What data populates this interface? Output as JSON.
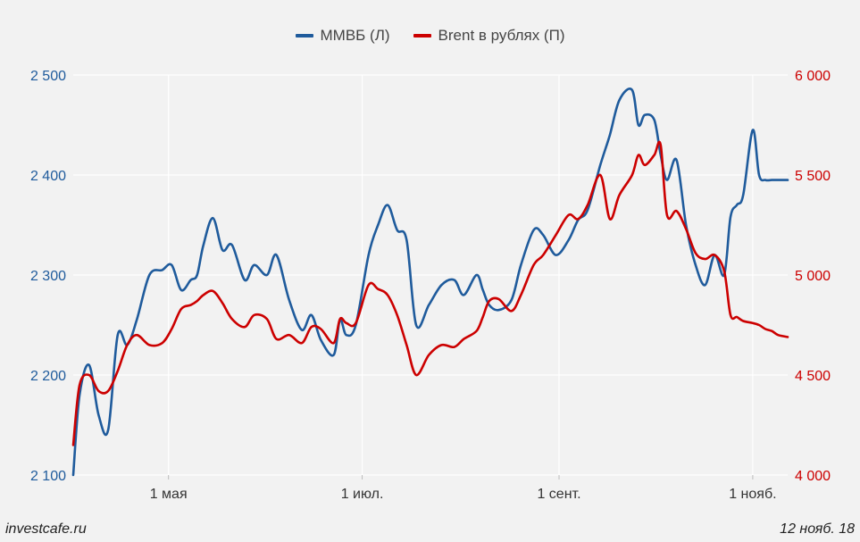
{
  "chart_data": {
    "type": "line",
    "legend_position": "top-center",
    "grid": true,
    "x_ticks": [
      "1 мая",
      "1 июл.",
      "1 сент.",
      "1 нояб."
    ],
    "x_range": [
      "2018-04-01",
      "2018-11-12"
    ],
    "left_axis": {
      "range": [
        2100,
        2500
      ],
      "ticks": [
        "2 100",
        "2 200",
        "2 300",
        "2 400",
        "2 500"
      ],
      "color": "#1f5b9c"
    },
    "right_axis": {
      "range": [
        4000,
        6000
      ],
      "ticks": [
        "4 000",
        "4 500",
        "5 000",
        "5 500",
        "6 000"
      ],
      "color": "#cc0000"
    },
    "series": [
      {
        "name": "ММВБ (Л)",
        "axis": "left",
        "color": "#1f5b9c",
        "x": [
          "2018-04-01",
          "2018-04-03",
          "2018-04-06",
          "2018-04-09",
          "2018-04-12",
          "2018-04-15",
          "2018-04-18",
          "2018-04-21",
          "2018-04-25",
          "2018-04-29",
          "2018-05-02",
          "2018-05-05",
          "2018-05-08",
          "2018-05-10",
          "2018-05-12",
          "2018-05-15",
          "2018-05-18",
          "2018-05-21",
          "2018-05-25",
          "2018-05-28",
          "2018-06-01",
          "2018-06-04",
          "2018-06-08",
          "2018-06-12",
          "2018-06-15",
          "2018-06-18",
          "2018-06-22",
          "2018-06-24",
          "2018-06-26",
          "2018-06-29",
          "2018-07-03",
          "2018-07-06",
          "2018-07-09",
          "2018-07-12",
          "2018-07-15",
          "2018-07-18",
          "2018-07-22",
          "2018-07-26",
          "2018-07-30",
          "2018-08-02",
          "2018-08-06",
          "2018-08-08",
          "2018-08-10",
          "2018-08-13",
          "2018-08-17",
          "2018-08-20",
          "2018-08-24",
          "2018-08-27",
          "2018-08-31",
          "2018-09-04",
          "2018-09-07",
          "2018-09-10",
          "2018-09-14",
          "2018-09-17",
          "2018-09-20",
          "2018-09-24",
          "2018-09-26",
          "2018-09-28",
          "2018-10-01",
          "2018-10-03",
          "2018-10-05",
          "2018-10-08",
          "2018-10-11",
          "2018-10-14",
          "2018-10-17",
          "2018-10-20",
          "2018-10-23",
          "2018-10-25",
          "2018-10-27",
          "2018-10-29",
          "2018-11-01",
          "2018-11-03",
          "2018-11-05",
          "2018-11-07",
          "2018-11-09",
          "2018-11-12"
        ],
        "values": [
          2100,
          2180,
          2210,
          2160,
          2145,
          2240,
          2230,
          2255,
          2300,
          2305,
          2310,
          2285,
          2295,
          2300,
          2330,
          2357,
          2325,
          2330,
          2295,
          2310,
          2300,
          2320,
          2275,
          2245,
          2260,
          2235,
          2220,
          2255,
          2240,
          2250,
          2320,
          2350,
          2370,
          2345,
          2335,
          2250,
          2270,
          2290,
          2295,
          2280,
          2300,
          2285,
          2270,
          2265,
          2275,
          2310,
          2345,
          2340,
          2320,
          2335,
          2355,
          2365,
          2410,
          2440,
          2475,
          2485,
          2450,
          2460,
          2455,
          2420,
          2395,
          2415,
          2350,
          2310,
          2290,
          2320,
          2300,
          2358,
          2370,
          2380,
          2445,
          2400,
          2395,
          2395,
          2395,
          2395
        ]
      },
      {
        "name": "Brent в рублях (П)",
        "axis": "right",
        "color": "#cc0000",
        "x": [
          "2018-04-01",
          "2018-04-03",
          "2018-04-06",
          "2018-04-09",
          "2018-04-12",
          "2018-04-15",
          "2018-04-18",
          "2018-04-21",
          "2018-04-25",
          "2018-04-29",
          "2018-05-02",
          "2018-05-05",
          "2018-05-08",
          "2018-05-10",
          "2018-05-12",
          "2018-05-15",
          "2018-05-18",
          "2018-05-21",
          "2018-05-25",
          "2018-05-28",
          "2018-06-01",
          "2018-06-04",
          "2018-06-08",
          "2018-06-12",
          "2018-06-15",
          "2018-06-18",
          "2018-06-22",
          "2018-06-24",
          "2018-06-26",
          "2018-06-29",
          "2018-07-03",
          "2018-07-06",
          "2018-07-09",
          "2018-07-12",
          "2018-07-15",
          "2018-07-18",
          "2018-07-22",
          "2018-07-26",
          "2018-07-30",
          "2018-08-02",
          "2018-08-06",
          "2018-08-08",
          "2018-08-10",
          "2018-08-13",
          "2018-08-17",
          "2018-08-20",
          "2018-08-24",
          "2018-08-27",
          "2018-08-31",
          "2018-09-04",
          "2018-09-07",
          "2018-09-10",
          "2018-09-14",
          "2018-09-17",
          "2018-09-20",
          "2018-09-24",
          "2018-09-26",
          "2018-09-28",
          "2018-10-01",
          "2018-10-03",
          "2018-10-05",
          "2018-10-08",
          "2018-10-11",
          "2018-10-14",
          "2018-10-17",
          "2018-10-20",
          "2018-10-23",
          "2018-10-25",
          "2018-10-27",
          "2018-10-29",
          "2018-11-01",
          "2018-11-03",
          "2018-11-05",
          "2018-11-07",
          "2018-11-09",
          "2018-11-12"
        ],
        "values": [
          4150,
          4450,
          4500,
          4420,
          4420,
          4520,
          4650,
          4700,
          4650,
          4660,
          4730,
          4830,
          4850,
          4870,
          4900,
          4920,
          4860,
          4780,
          4740,
          4800,
          4780,
          4680,
          4700,
          4660,
          4740,
          4730,
          4660,
          4780,
          4760,
          4760,
          4950,
          4930,
          4900,
          4800,
          4650,
          4500,
          4600,
          4650,
          4640,
          4680,
          4720,
          4790,
          4870,
          4880,
          4820,
          4900,
          5050,
          5100,
          5200,
          5300,
          5280,
          5350,
          5500,
          5280,
          5400,
          5500,
          5600,
          5550,
          5600,
          5650,
          5300,
          5320,
          5230,
          5110,
          5080,
          5100,
          5020,
          4800,
          4790,
          4770,
          4760,
          4750,
          4730,
          4720,
          4700,
          4690
        ]
      }
    ]
  },
  "source": "investcafe.ru",
  "date": "12 нояб. 18"
}
